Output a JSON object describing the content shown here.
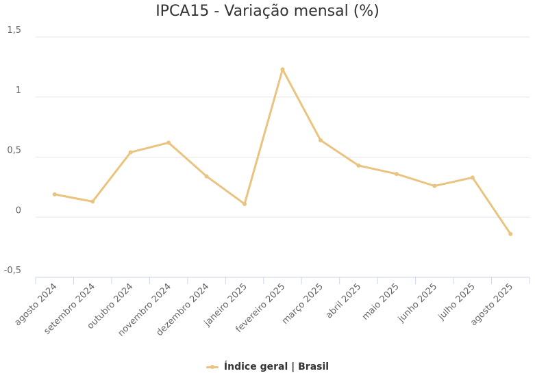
{
  "chart_data": {
    "type": "line",
    "title": "IPCA15 - Variação mensal (%)",
    "xlabel": "",
    "ylabel": "",
    "categories": [
      "agosto 2024",
      "setembro 2024",
      "outubro 2024",
      "novembro 2024",
      "dezembro 2024",
      "janeiro 2025",
      "fevereiro 2025",
      "março 2025",
      "abril 2025",
      "maio 2025",
      "junho 2025",
      "julho 2025",
      "agosto 2025"
    ],
    "series": [
      {
        "name": "Índice geral | Brasil",
        "color": "#EAC37F",
        "values": [
          0.19,
          0.13,
          0.54,
          0.62,
          0.34,
          0.11,
          1.23,
          0.64,
          0.43,
          0.36,
          0.26,
          0.33,
          -0.14
        ]
      }
    ],
    "ylim": [
      -0.5,
      1.5
    ],
    "yticks": [
      -0.5,
      0,
      0.5,
      1,
      1.5
    ],
    "ytick_labels": [
      "-0,5",
      "0",
      "0,5",
      "1",
      "1,5"
    ],
    "grid": true,
    "legend_position": "bottom-center"
  }
}
